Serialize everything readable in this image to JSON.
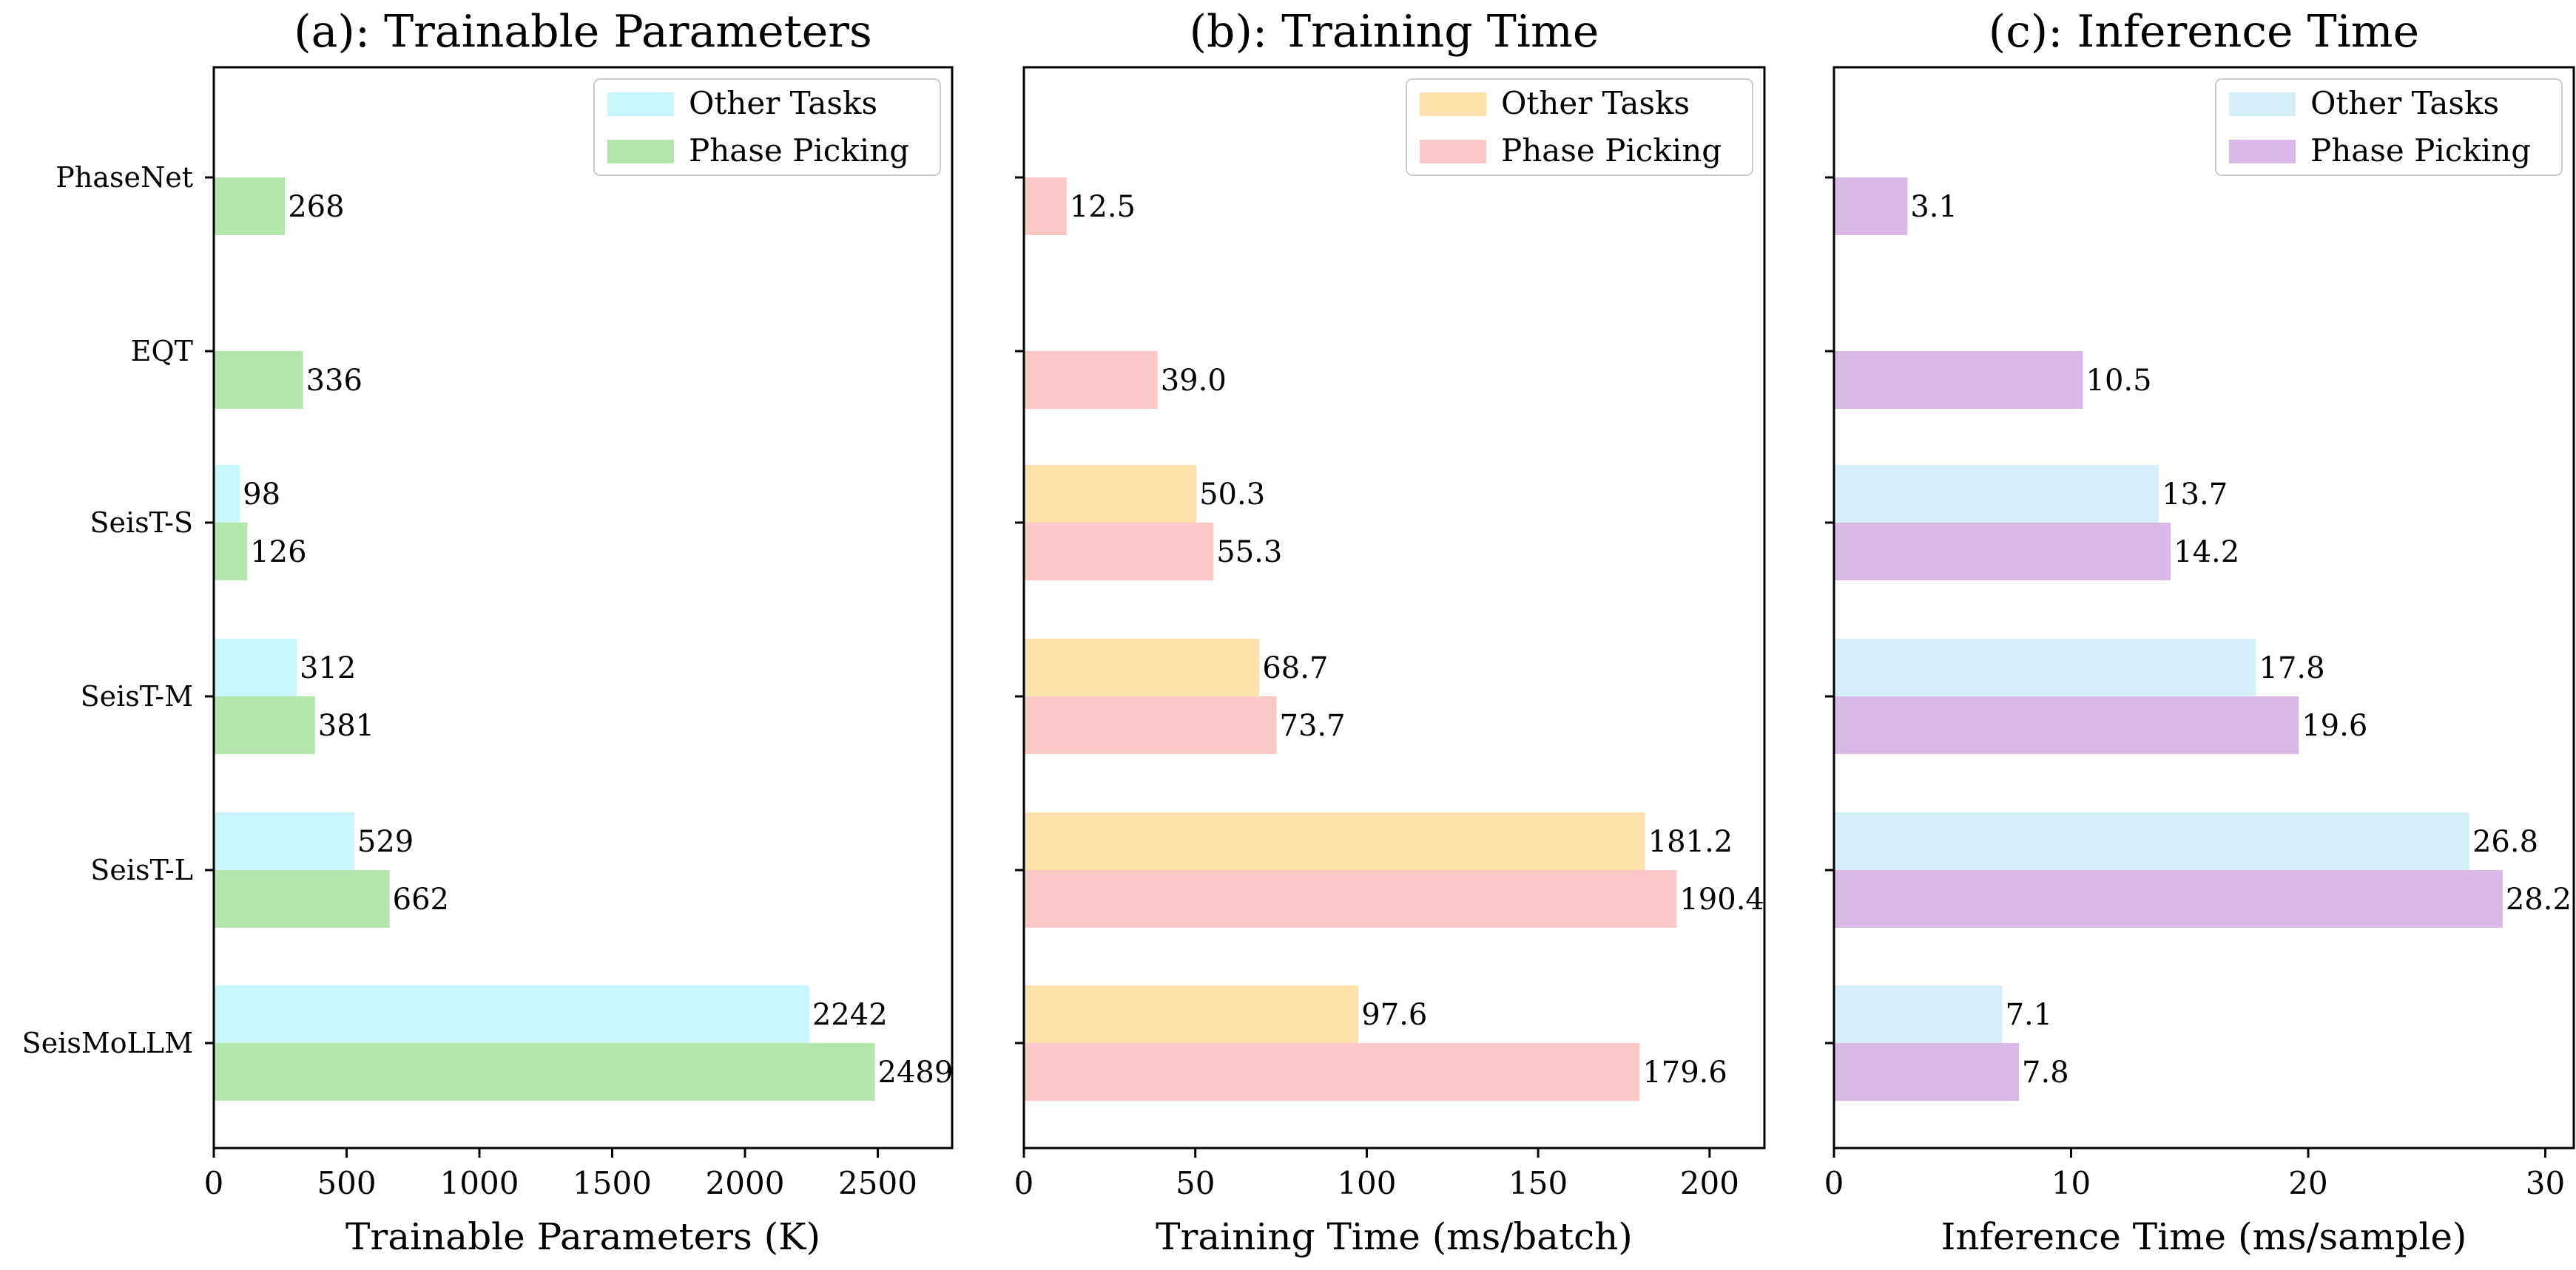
{
  "chart_data": [
    {
      "type": "bar",
      "orientation": "horizontal",
      "title": "(a): Trainable Parameters",
      "xlabel": "Trainable Parameters (K)",
      "categories": [
        "PhaseNet",
        "EQT",
        "SeisT-S",
        "SeisT-M",
        "SeisT-L",
        "SeisMoLLM"
      ],
      "xlim": [
        0,
        2780
      ],
      "xticks": [
        0,
        500,
        1000,
        1500,
        2000,
        2500
      ],
      "tick_labels": [
        "0",
        "500",
        "1000",
        "1500",
        "2000",
        "2500"
      ],
      "legend_position": "top-right",
      "series": [
        {
          "name": "Other Tasks",
          "color": "#c9f6fb",
          "values": [
            null,
            null,
            98,
            312,
            529,
            2242
          ],
          "labels": [
            "",
            "",
            "98",
            "312",
            "529",
            "2242"
          ]
        },
        {
          "name": "Phase Picking",
          "color": "#b3e6ab",
          "values": [
            268,
            336,
            126,
            381,
            662,
            2489
          ],
          "labels": [
            "268",
            "336",
            "126",
            "381",
            "662",
            "2489"
          ]
        }
      ]
    },
    {
      "type": "bar",
      "orientation": "horizontal",
      "title": "(b): Training Time",
      "xlabel": "Training Time (ms/batch)",
      "categories": [
        "PhaseNet",
        "EQT",
        "SeisT-S",
        "SeisT-M",
        "SeisT-L",
        "SeisMoLLM"
      ],
      "xlim": [
        0,
        216
      ],
      "xticks": [
        0,
        50,
        100,
        150,
        200
      ],
      "tick_labels": [
        "0",
        "50",
        "100",
        "150",
        "200"
      ],
      "legend_position": "top-right",
      "series": [
        {
          "name": "Other Tasks",
          "color": "#fce1ab",
          "values": [
            null,
            null,
            50.3,
            68.7,
            181.2,
            97.6
          ],
          "labels": [
            "",
            "",
            "50.3",
            "68.7",
            "181.2",
            "97.6"
          ]
        },
        {
          "name": "Phase Picking",
          "color": "#fcc7c7",
          "values": [
            12.5,
            39.0,
            55.3,
            73.7,
            190.4,
            179.6
          ],
          "labels": [
            "12.5",
            "39.0",
            "55.3",
            "73.7",
            "190.4",
            "179.6"
          ]
        }
      ]
    },
    {
      "type": "bar",
      "orientation": "horizontal",
      "title": "(c): Inference Time",
      "xlabel": "Inference Time (ms/sample)",
      "categories": [
        "PhaseNet",
        "EQT",
        "SeisT-S",
        "SeisT-M",
        "SeisT-L",
        "SeisMoLLM"
      ],
      "xlim": [
        0,
        31.2
      ],
      "xticks": [
        0,
        10,
        20,
        30
      ],
      "tick_labels": [
        "0",
        "10",
        "20",
        "30"
      ],
      "legend_position": "top-right",
      "series": [
        {
          "name": "Other Tasks",
          "color": "#d5eff9",
          "values": [
            null,
            null,
            13.7,
            17.8,
            26.8,
            7.1
          ],
          "labels": [
            "",
            "",
            "13.7",
            "17.8",
            "26.8",
            "7.1"
          ]
        },
        {
          "name": "Phase Picking",
          "color": "#d9b9e8",
          "values": [
            3.1,
            10.5,
            14.2,
            19.6,
            28.2,
            7.8
          ],
          "labels": [
            "3.1",
            "10.5",
            "14.2",
            "19.6",
            "28.2",
            "7.8"
          ]
        }
      ]
    }
  ]
}
